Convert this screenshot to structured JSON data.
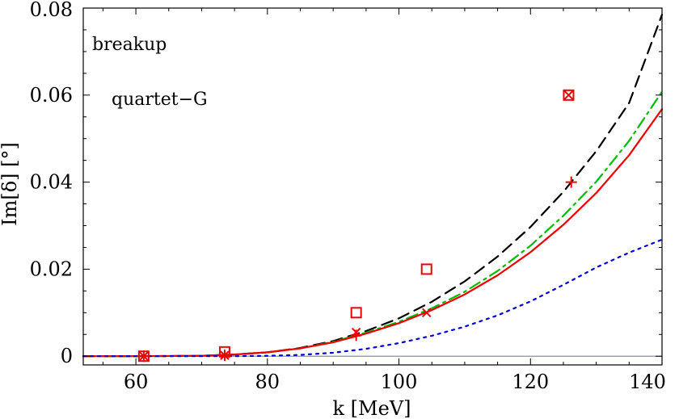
{
  "chart_data": {
    "type": "line",
    "title": "",
    "xlabel": "k [MeV]",
    "ylabel": "Im[δ] [°]",
    "xlim": [
      52,
      140
    ],
    "ylim": [
      -0.002,
      0.08
    ],
    "x_ticks": [
      60,
      80,
      100,
      120,
      140
    ],
    "x_tick_labels": [
      "60",
      "80",
      "100",
      "120",
      "140"
    ],
    "y_ticks": [
      0,
      0.02,
      0.04,
      0.06,
      0.08
    ],
    "y_tick_labels": [
      "0",
      "0.02",
      "0.04",
      "0.06",
      "0.08"
    ],
    "annotations": [
      "breakup",
      "quartet−G"
    ],
    "series": [
      {
        "name": "dashed-black",
        "color": "#000000",
        "style": "dashed",
        "x": [
          52,
          60,
          70,
          75,
          80,
          85,
          90,
          95,
          100,
          105,
          110,
          115,
          120,
          125,
          130,
          135,
          140
        ],
        "y": [
          0,
          0,
          0.0001,
          0.0004,
          0.0009,
          0.0019,
          0.0035,
          0.0058,
          0.0087,
          0.0125,
          0.0172,
          0.0229,
          0.0297,
          0.0378,
          0.0471,
          0.0582,
          0.0785
        ]
      },
      {
        "name": "dashdot-green",
        "color": "#00bb00",
        "style": "dashdot",
        "x": [
          52,
          60,
          70,
          75,
          80,
          85,
          90,
          95,
          100,
          105,
          110,
          115,
          120,
          125,
          130,
          135,
          140
        ],
        "y": [
          0,
          0,
          0.0001,
          0.0004,
          0.0009,
          0.0018,
          0.0033,
          0.0054,
          0.0079,
          0.011,
          0.0148,
          0.0196,
          0.0254,
          0.0323,
          0.0401,
          0.0495,
          0.0608
        ]
      },
      {
        "name": "solid-red",
        "color": "#ee0000",
        "style": "solid",
        "x": [
          52,
          60,
          70,
          75,
          80,
          85,
          90,
          95,
          100,
          105,
          110,
          115,
          120,
          125,
          130,
          135,
          140
        ],
        "y": [
          0,
          0,
          0.0001,
          0.0004,
          0.0009,
          0.0018,
          0.0032,
          0.0052,
          0.0076,
          0.0106,
          0.0142,
          0.0186,
          0.0239,
          0.0302,
          0.0375,
          0.0462,
          0.0568
        ]
      },
      {
        "name": "dotted-blue",
        "color": "#0000dd",
        "style": "dotted",
        "x": [
          52,
          60,
          70,
          75,
          80,
          85,
          90,
          95,
          100,
          105,
          110,
          115,
          120,
          125,
          130,
          135,
          140
        ],
        "y": [
          0,
          0,
          0,
          0,
          0.0001,
          0.0003,
          0.0008,
          0.0017,
          0.003,
          0.0047,
          0.0068,
          0.0094,
          0.0126,
          0.0164,
          0.0204,
          0.0238,
          0.0268
        ]
      }
    ],
    "markers": [
      {
        "shape": "square",
        "color": "#ee0000",
        "points": [
          [
            61.2,
            0
          ],
          [
            73.5,
            0.001
          ],
          [
            93.5,
            0.01
          ],
          [
            104.2,
            0.02
          ],
          [
            125.8,
            0.06
          ]
        ]
      },
      {
        "shape": "cross",
        "color": "#ee0000",
        "points": [
          [
            61.2,
            0
          ],
          [
            73.5,
            0.0002
          ],
          [
            93.5,
            0.0055
          ],
          [
            104.2,
            0.01
          ],
          [
            125.8,
            0.06
          ]
        ]
      },
      {
        "shape": "plus",
        "color": "#ee0000",
        "points": [
          [
            61.2,
            0
          ],
          [
            73.5,
            0.0002
          ],
          [
            93.5,
            0.0048
          ],
          [
            126.2,
            0.04
          ]
        ]
      }
    ]
  }
}
